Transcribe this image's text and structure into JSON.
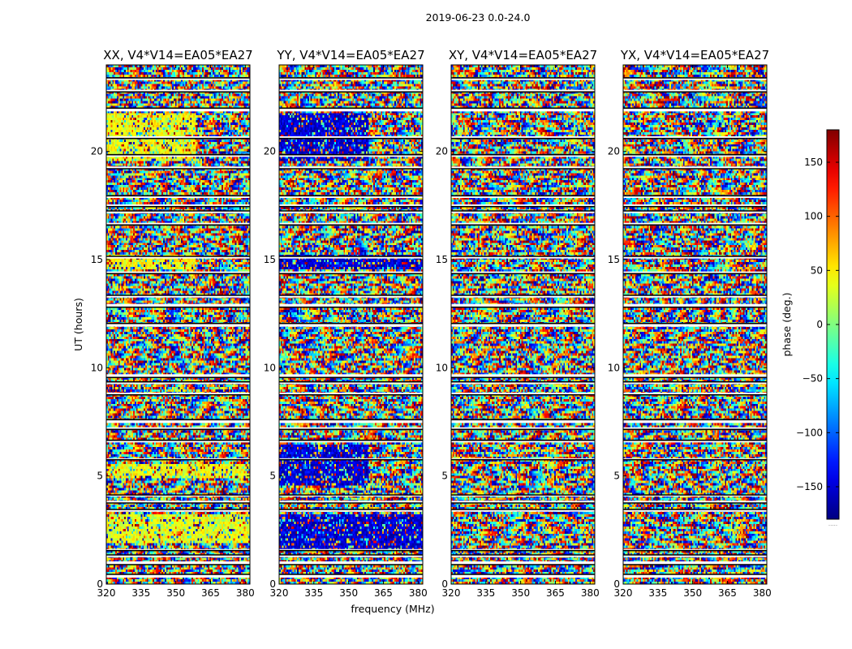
{
  "chart_data": {
    "type": "heatmap",
    "suptitle": "2019-06-23 0.0-24.0",
    "xlabel": "frequency (MHz)",
    "ylabel": "UT (hours)",
    "xlim": [
      320,
      382
    ],
    "ylim": [
      0,
      24
    ],
    "x_ticks": [
      320,
      335,
      350,
      365,
      380
    ],
    "y_ticks": [
      0,
      5,
      10,
      15,
      20
    ],
    "colormap": "jet",
    "colorbar": {
      "label": "phase (deg.)",
      "range": [
        -180,
        180
      ],
      "ticks": [
        150,
        100,
        50,
        0,
        -50,
        -100,
        -150
      ],
      "tick_labels": [
        "150",
        "100",
        "50",
        "0",
        "−50",
        "−100",
        "−150"
      ],
      "note": "....."
    },
    "panels": [
      {
        "id": "XX",
        "title": "XX, V4*V14=EA05*EA27"
      },
      {
        "id": "YY",
        "title": "YY, V4*V14=EA05*EA27"
      },
      {
        "id": "XY",
        "title": "XY, V4*V14=EA05*EA27"
      },
      {
        "id": "YX",
        "title": "YX, V4*V14=EA05*EA27"
      }
    ],
    "flagged_gaps_hours": [
      [
        0.3,
        0.45
      ],
      [
        0.9,
        1.05
      ],
      [
        1.25,
        1.35
      ],
      [
        1.55,
        1.62
      ],
      [
        3.35,
        3.45
      ],
      [
        3.75,
        3.85
      ],
      [
        4.05,
        4.12
      ],
      [
        5.75,
        5.82
      ],
      [
        6.55,
        6.65
      ],
      [
        7.15,
        7.25
      ],
      [
        7.45,
        7.6
      ],
      [
        8.75,
        8.85
      ],
      [
        9.25,
        9.35
      ],
      [
        9.55,
        9.7
      ],
      [
        11.9,
        12.05
      ],
      [
        12.8,
        12.95
      ],
      [
        13.25,
        13.35
      ],
      [
        14.35,
        14.45
      ],
      [
        15.05,
        15.15
      ],
      [
        16.6,
        16.7
      ],
      [
        17.15,
        17.25
      ],
      [
        17.45,
        17.55
      ],
      [
        17.85,
        17.95
      ],
      [
        19.2,
        19.3
      ],
      [
        19.75,
        19.85
      ],
      [
        20.6,
        20.7
      ],
      [
        21.85,
        22.0
      ],
      [
        22.75,
        22.85
      ],
      [
        23.3,
        23.4
      ]
    ],
    "dominant_phase_regions": [
      {
        "panel": "XX",
        "f_range": [
          320,
          359
        ],
        "t_range": [
          19.6,
          21.8
        ],
        "phase": 40
      },
      {
        "panel": "XX",
        "f_range": [
          320,
          359
        ],
        "t_range": [
          14.6,
          15.2
        ],
        "phase": 45
      },
      {
        "panel": "XX",
        "f_range": [
          320,
          382
        ],
        "t_range": [
          4.9,
          5.6
        ],
        "phase": 40
      },
      {
        "panel": "XX",
        "f_range": [
          320,
          382
        ],
        "t_range": [
          1.9,
          3.2
        ],
        "phase": 35
      },
      {
        "panel": "YY",
        "f_range": [
          320,
          359
        ],
        "t_range": [
          19.6,
          21.8
        ],
        "phase": -150
      },
      {
        "panel": "YY",
        "f_range": [
          320,
          382
        ],
        "t_range": [
          14.6,
          15.2
        ],
        "phase": -150
      },
      {
        "panel": "YY",
        "f_range": [
          320,
          359
        ],
        "t_range": [
          4.6,
          6.4
        ],
        "phase": -150
      },
      {
        "panel": "YY",
        "f_range": [
          320,
          382
        ],
        "t_range": [
          1.6,
          3.2
        ],
        "phase": -150
      }
    ]
  }
}
